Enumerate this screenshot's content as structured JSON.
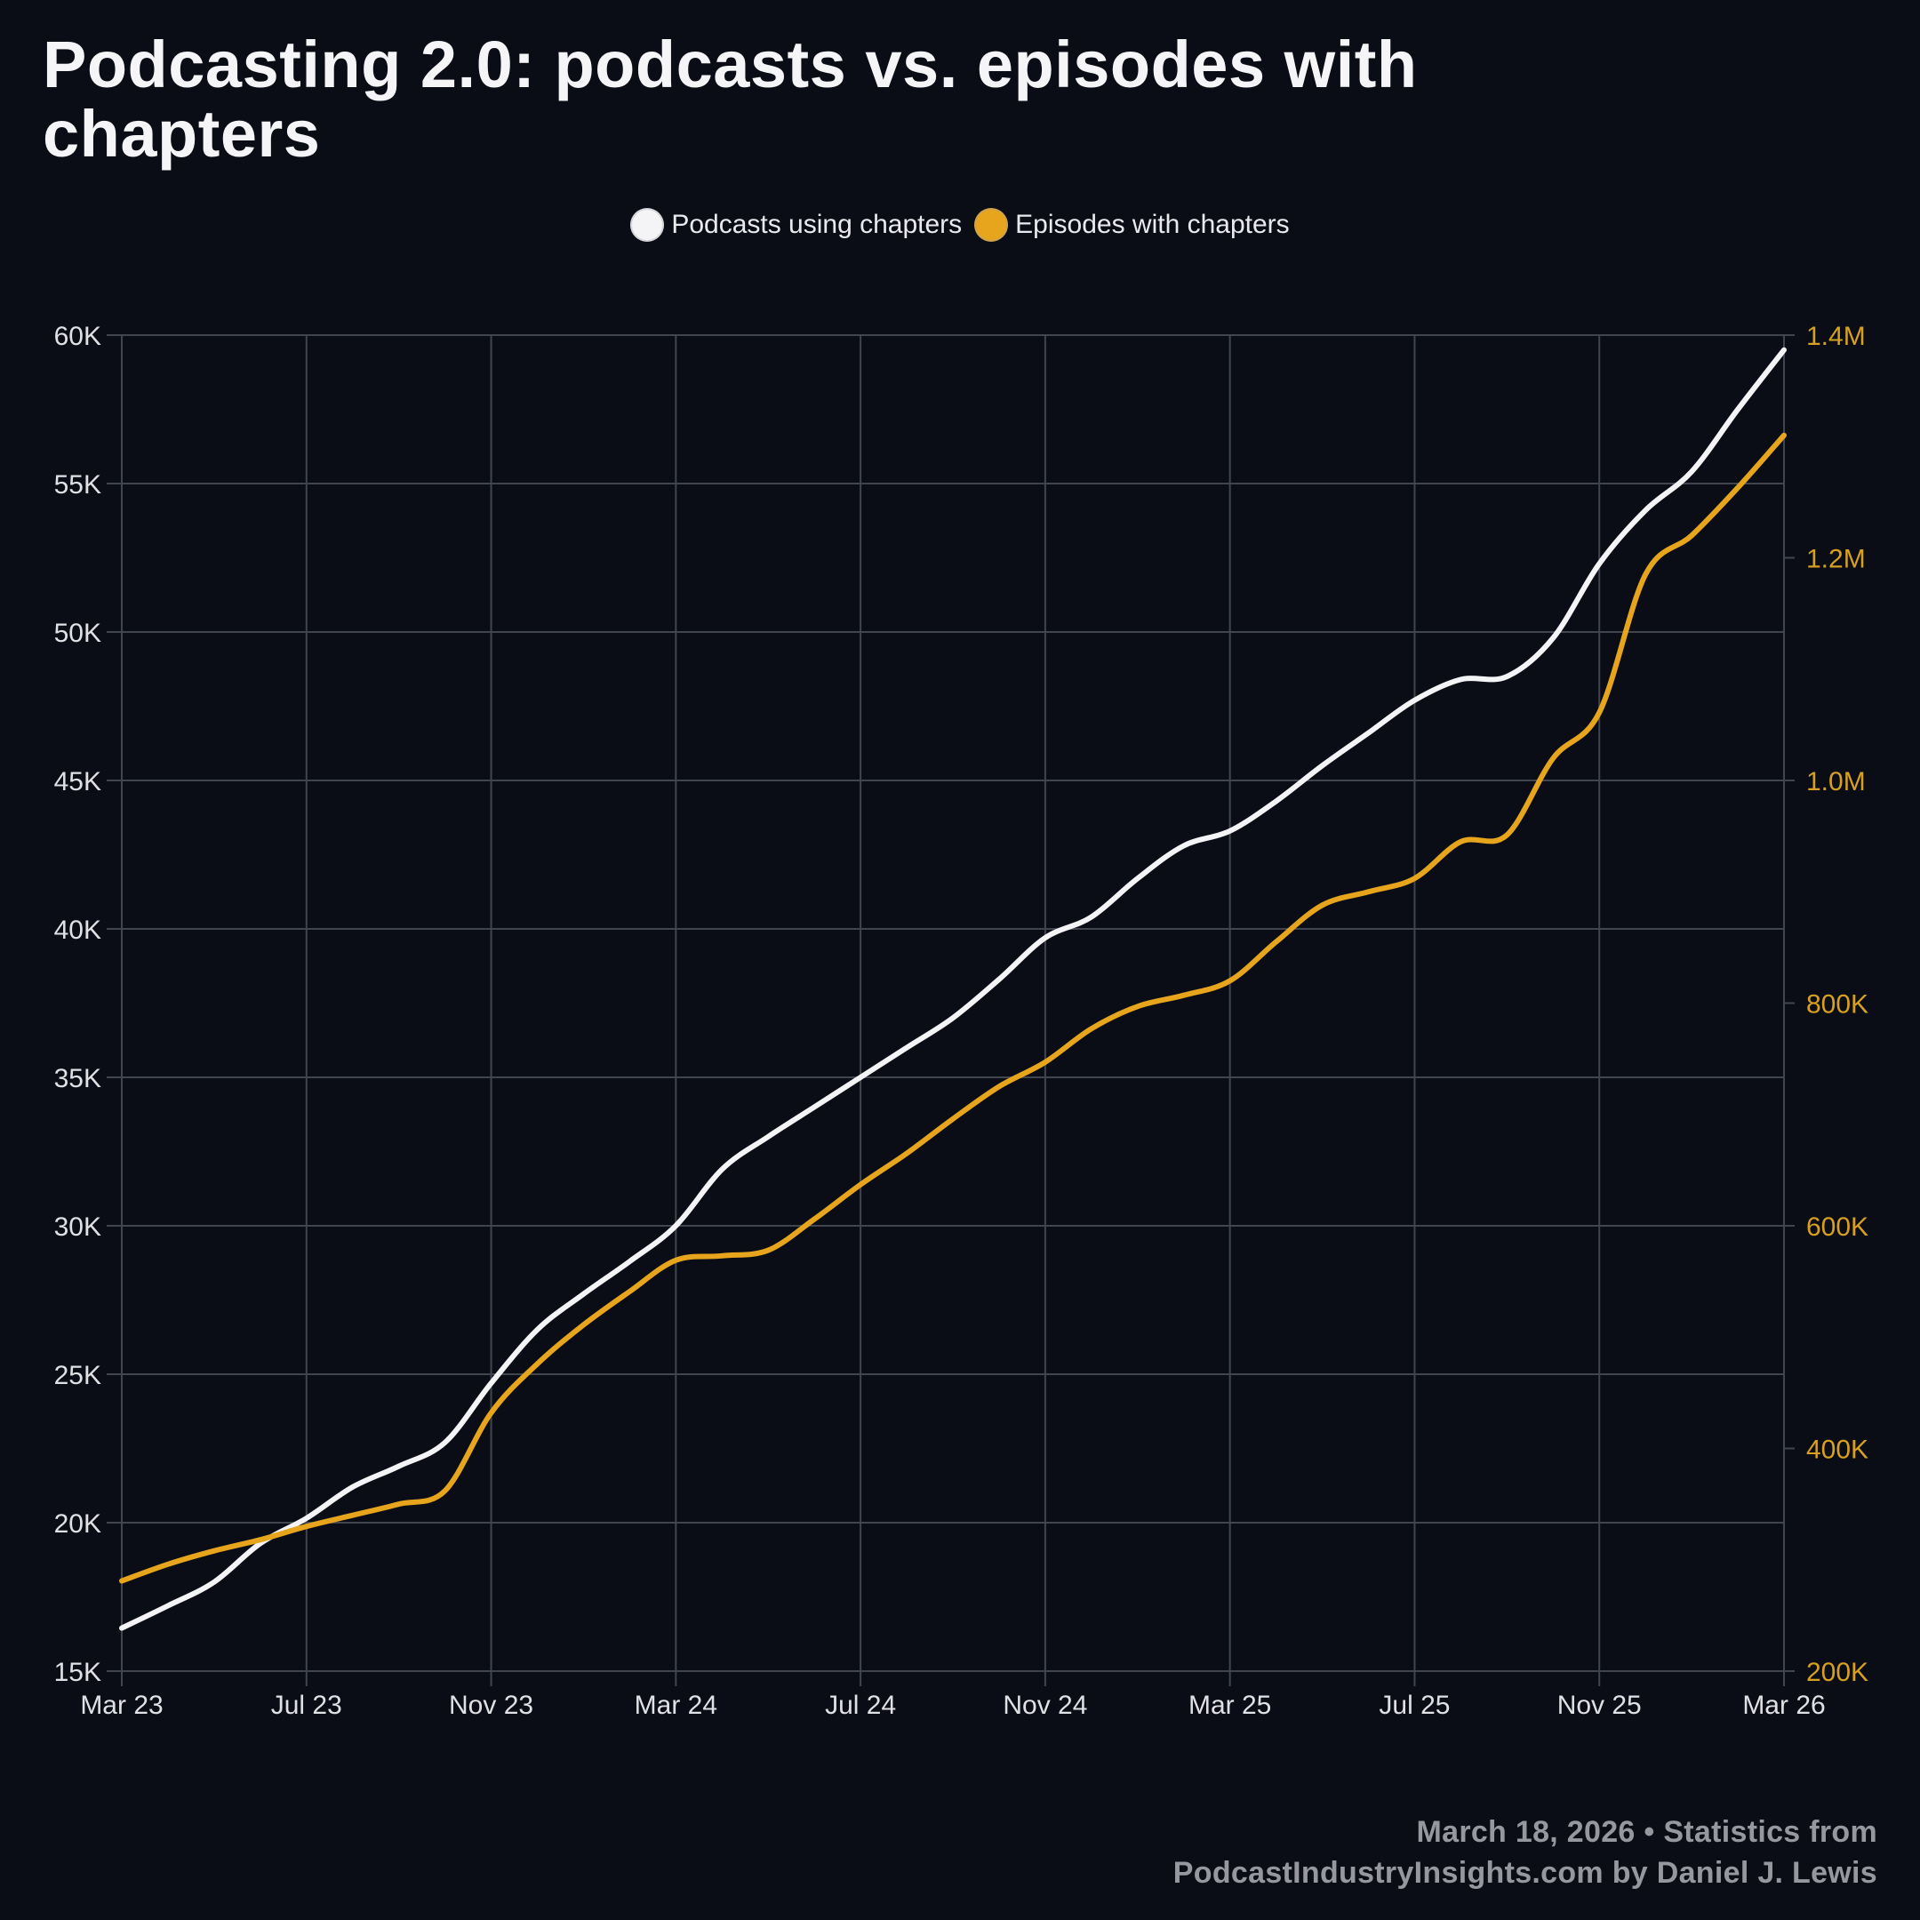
{
  "title": "Podcasting 2.0: podcasts vs. episodes with chapters",
  "legend": {
    "items": [
      {
        "label": "Podcasts using chapters",
        "color": "#f4f4f6"
      },
      {
        "label": "Episodes with chapters",
        "color": "#e6a51d"
      }
    ]
  },
  "footer": {
    "line1": "March 18, 2026 • Statistics from",
    "line2": "PodcastIndustryInsights.com by Daniel J. Lewis"
  },
  "colors": {
    "background": "#0a0d15",
    "grid": "#41454e",
    "title_text": "#f5f5f7",
    "axis_label": "#e0e0e5",
    "right_axis_label": "#d7a020",
    "footer_text": "#97979f",
    "podcasts_line": "#f4f4f6",
    "episodes_line": "#e6a51d"
  },
  "chart_data": {
    "type": "line",
    "title": "Podcasting 2.0: podcasts vs. episodes with chapters",
    "x": [
      "Mar 23",
      "Apr 23",
      "May 23",
      "Jun 23",
      "Jul 23",
      "Aug 23",
      "Sep 23",
      "Oct 23",
      "Nov 23",
      "Dec 23",
      "Jan 24",
      "Feb 24",
      "Mar 24",
      "Apr 24",
      "May 24",
      "Jun 24",
      "Jul 24",
      "Aug 24",
      "Sep 24",
      "Oct 24",
      "Nov 24",
      "Dec 24",
      "Jan 25",
      "Feb 25",
      "Mar 25",
      "Apr 25",
      "May 25",
      "Jun 25",
      "Jul 25",
      "Aug 25",
      "Sep 25",
      "Oct 25",
      "Nov 25",
      "Dec 25",
      "Jan 26",
      "Feb 26",
      "Mar 26"
    ],
    "x_tick_indices": [
      0,
      4,
      8,
      12,
      16,
      20,
      24,
      28,
      32,
      36
    ],
    "x_tick_labels": [
      "Mar 23",
      "Jul 23",
      "Nov 23",
      "Mar 24",
      "Jul 24",
      "Nov 24",
      "Mar 25",
      "Jul 25",
      "Nov 25",
      "Mar 26"
    ],
    "left_axis": {
      "min": 15000,
      "max": 60000,
      "step": 5000,
      "tick_labels": [
        "15K",
        "20K",
        "25K",
        "30K",
        "35K",
        "40K",
        "45K",
        "50K",
        "55K",
        "60K"
      ]
    },
    "right_axis": {
      "min": 200000,
      "max": 1400000,
      "step": 200000,
      "tick_labels": [
        "200K",
        "400K",
        "600K",
        "800K",
        "1.0M",
        "1.2M",
        "1.4M"
      ]
    },
    "grid": true,
    "legend_position": "top-center",
    "series": [
      {
        "name": "Podcasts using chapters",
        "axis": "left",
        "color": "#f4f4f6",
        "values": [
          16450,
          17200,
          18000,
          19300,
          20150,
          21200,
          21900,
          22700,
          24700,
          26500,
          27700,
          28800,
          30000,
          31900,
          33000,
          34000,
          35000,
          36000,
          37000,
          38300,
          39700,
          40400,
          41700,
          42800,
          43300,
          44300,
          45500,
          46600,
          47700,
          48400,
          48500,
          49800,
          52300,
          54100,
          55400,
          57500,
          59500
        ]
      },
      {
        "name": "Episodes with chapters",
        "axis": "right",
        "color": "#e6a51d",
        "values": [
          281000,
          296000,
          308000,
          318000,
          330000,
          340000,
          350000,
          362000,
          432000,
          476000,
          511000,
          541000,
          569000,
          573000,
          578000,
          606000,
          637000,
          665000,
          696000,
          725000,
          747000,
          777000,
          797000,
          807000,
          820000,
          855000,
          888000,
          900000,
          912000,
          945000,
          951000,
          1020000,
          1061000,
          1185000,
          1220000,
          1263000,
          1310000
        ]
      }
    ]
  }
}
